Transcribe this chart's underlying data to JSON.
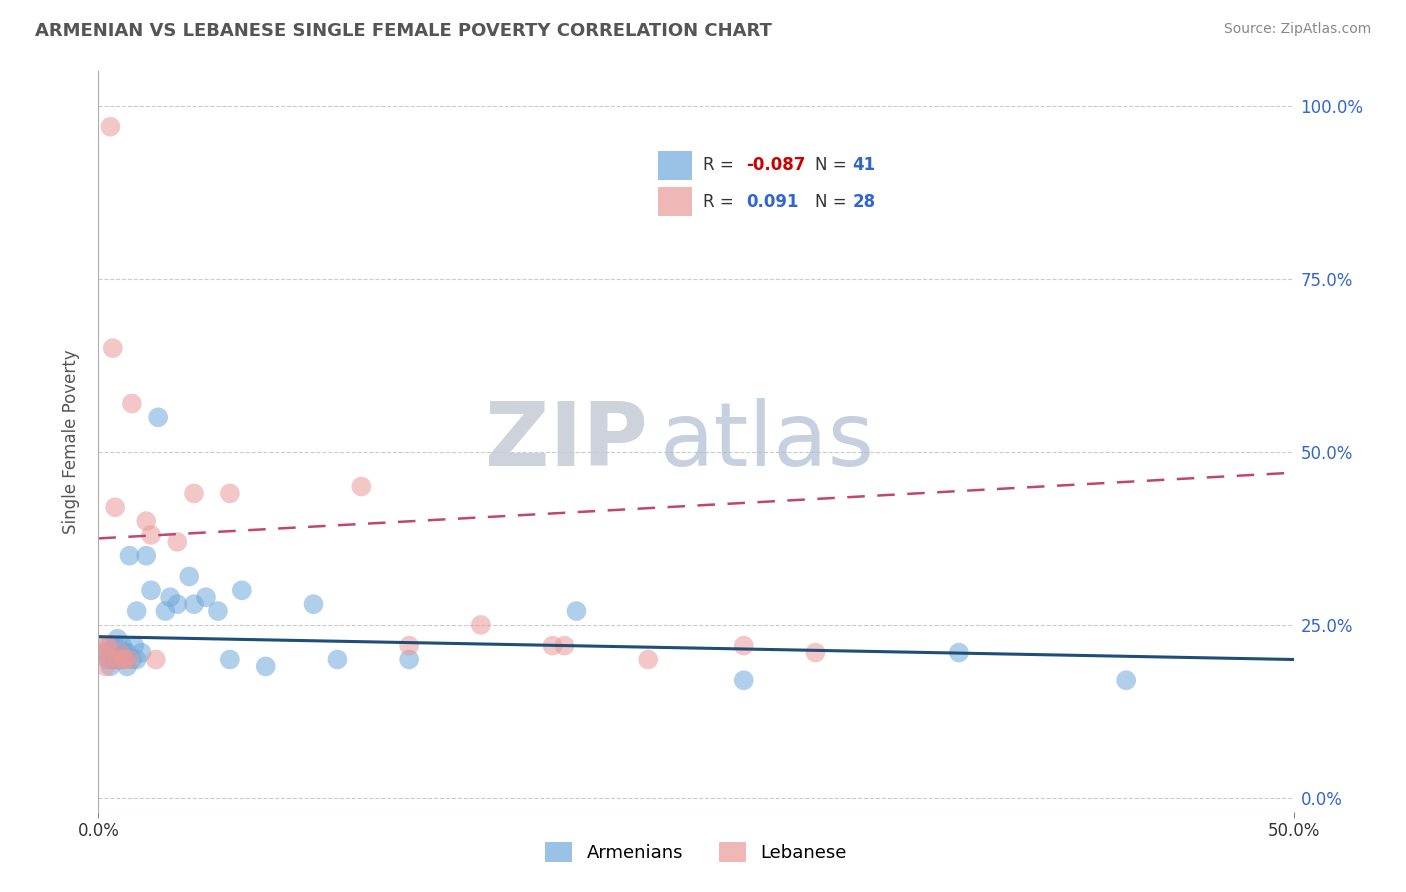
{
  "title": "ARMENIAN VS LEBANESE SINGLE FEMALE POVERTY CORRELATION CHART",
  "source": "Source: ZipAtlas.com",
  "ylabel": "Single Female Poverty",
  "xlim": [
    0.0,
    0.5
  ],
  "ylim": [
    -0.02,
    1.05
  ],
  "yticks": [
    0.0,
    0.25,
    0.5,
    0.75,
    1.0
  ],
  "ytick_labels": [
    "0.0%",
    "25.0%",
    "50.0%",
    "75.0%",
    "100.0%"
  ],
  "xticks": [
    0.0,
    0.5
  ],
  "xtick_labels": [
    "0.0%",
    "50.0%"
  ],
  "armenian_color": "#6fa8dc",
  "lebanese_color": "#ea9999",
  "armenian_line_color": "#1f4e79",
  "lebanese_line_color": "#c2456b",
  "legend_R_armenian": "-0.087",
  "legend_N_armenian": "41",
  "legend_R_lebanese": "0.091",
  "legend_N_lebanese": "28",
  "armenian_x": [
    0.003,
    0.004,
    0.005,
    0.005,
    0.006,
    0.007,
    0.007,
    0.008,
    0.008,
    0.009,
    0.01,
    0.01,
    0.011,
    0.012,
    0.012,
    0.013,
    0.014,
    0.015,
    0.016,
    0.016,
    0.018,
    0.02,
    0.022,
    0.025,
    0.028,
    0.03,
    0.033,
    0.038,
    0.04,
    0.045,
    0.05,
    0.055,
    0.06,
    0.07,
    0.09,
    0.1,
    0.13,
    0.2,
    0.27,
    0.36,
    0.43
  ],
  "armenian_y": [
    0.21,
    0.2,
    0.19,
    0.22,
    0.2,
    0.22,
    0.2,
    0.21,
    0.23,
    0.2,
    0.2,
    0.22,
    0.21,
    0.19,
    0.21,
    0.35,
    0.2,
    0.22,
    0.2,
    0.27,
    0.21,
    0.35,
    0.3,
    0.55,
    0.27,
    0.29,
    0.28,
    0.32,
    0.28,
    0.29,
    0.27,
    0.2,
    0.3,
    0.19,
    0.28,
    0.2,
    0.2,
    0.27,
    0.17,
    0.21,
    0.17
  ],
  "lebanese_x": [
    0.002,
    0.003,
    0.003,
    0.004,
    0.004,
    0.005,
    0.006,
    0.007,
    0.008,
    0.009,
    0.01,
    0.011,
    0.013,
    0.014,
    0.02,
    0.022,
    0.024,
    0.033,
    0.04,
    0.055,
    0.11,
    0.13,
    0.16,
    0.19,
    0.195,
    0.23,
    0.27,
    0.3
  ],
  "lebanese_y": [
    0.21,
    0.19,
    0.22,
    0.2,
    0.22,
    0.97,
    0.65,
    0.42,
    0.2,
    0.21,
    0.2,
    0.2,
    0.2,
    0.57,
    0.4,
    0.38,
    0.2,
    0.37,
    0.44,
    0.44,
    0.45,
    0.22,
    0.25,
    0.22,
    0.22,
    0.2,
    0.22,
    0.21
  ],
  "grid_color": "#cccccc",
  "background_color": "#ffffff",
  "watermark_ZIP_color": "#c0c8d8",
  "watermark_atlas_color": "#a8b8cc",
  "legend_box_color": "#ffffff"
}
